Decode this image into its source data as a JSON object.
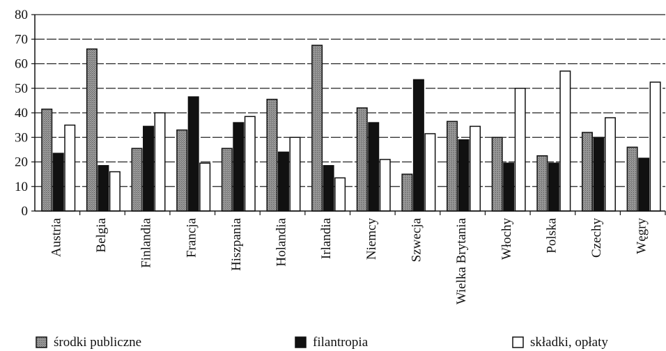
{
  "chart_data": {
    "type": "bar",
    "title": "",
    "xlabel": "",
    "ylabel": "",
    "ylim": [
      0,
      80
    ],
    "yticks": [
      0,
      10,
      20,
      30,
      40,
      50,
      60,
      70,
      80
    ],
    "grid": "horizontal dashed",
    "legend_position": "bottom",
    "categories": [
      "Austria",
      "Belgia",
      "Finlandia",
      "Francja",
      "Hiszpania",
      "Holandia",
      "Irlandia",
      "Niemcy",
      "Szwecja",
      "Wielka Brytania",
      "Włochy",
      "Polska",
      "Czechy",
      "Węgry"
    ],
    "series": [
      {
        "name": "środki publiczne",
        "color": "#8a8a8a",
        "values": [
          41.5,
          66,
          25.5,
          33,
          25.5,
          45.5,
          67.5,
          42,
          15,
          36.5,
          30,
          22.5,
          32,
          26
        ]
      },
      {
        "name": "filantropia",
        "color": "#111111",
        "values": [
          23.5,
          18.5,
          34.5,
          46.5,
          36,
          24,
          18.5,
          36,
          53.5,
          29,
          19.5,
          19.5,
          30,
          21.5
        ]
      },
      {
        "name": "składki, opłaty",
        "color": "#ffffff",
        "values": [
          35,
          16,
          40,
          19.5,
          38.5,
          30,
          13.5,
          21,
          31.5,
          34.5,
          50,
          57,
          38,
          52.5
        ]
      }
    ]
  }
}
